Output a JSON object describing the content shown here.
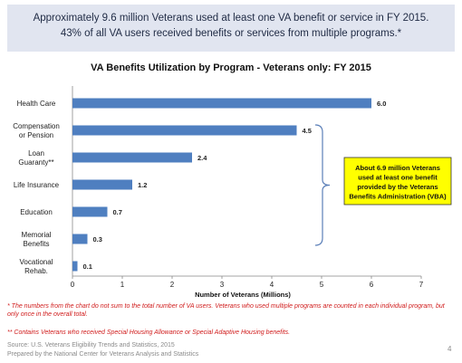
{
  "banner": {
    "line1": "Approximately 9.6 million Veterans used at least one VA benefit or service in FY 2015.",
    "line2": "43% of all VA users received benefits or services from multiple programs.*"
  },
  "chart_data": {
    "type": "bar",
    "orientation": "horizontal",
    "title": "VA Benefits Utilization by Program - Veterans only: FY 2015",
    "xlabel": "Number of Veterans (Millions)",
    "ylabel": "",
    "xlim": [
      0,
      7
    ],
    "xticks": [
      "0",
      "1",
      "2",
      "3",
      "4",
      "5",
      "6",
      "7"
    ],
    "categories": [
      [
        "Health Care"
      ],
      [
        "Compensation",
        "or Pension"
      ],
      [
        "Loan",
        "Guaranty**"
      ],
      [
        "Life Insurance"
      ],
      [
        "Education"
      ],
      [
        "Memorial",
        "Benefits"
      ],
      [
        "Vocational",
        "Rehab."
      ]
    ],
    "values": [
      6.0,
      4.5,
      2.4,
      1.2,
      0.7,
      0.3,
      0.1
    ],
    "value_labels": [
      "6.0",
      "4.5",
      "2.4",
      "1.2",
      "0.7",
      "0.3",
      "0.1"
    ],
    "bar_color": "#4f7fc0",
    "grid": false,
    "annotation": {
      "lines": [
        "About 6.9 million Veterans",
        "used at least one benefit",
        "provided by the Veterans",
        "Benefits Administration (VBA)"
      ],
      "background": "#ffff00",
      "brace_covers": [
        "Compensation or Pension",
        "Loan Guaranty**",
        "Life Insurance",
        "Education",
        "Memorial Benefits"
      ]
    }
  },
  "notes": {
    "note1": "* The numbers from the chart do not sum to the total number of VA users. Veterans who used multiple programs are counted in each individual program, but only once in the overall total.",
    "note2": "** Contains Veterans who received Special Housing Allowance or Special Adaptive Housing benefits."
  },
  "footer": {
    "source": "Source: U.S. Veterans Eligibility Trends and Statistics, 2015",
    "prepared": "Prepared by the National Center for Veterans Analysis and Statistics",
    "page_number": "4"
  }
}
